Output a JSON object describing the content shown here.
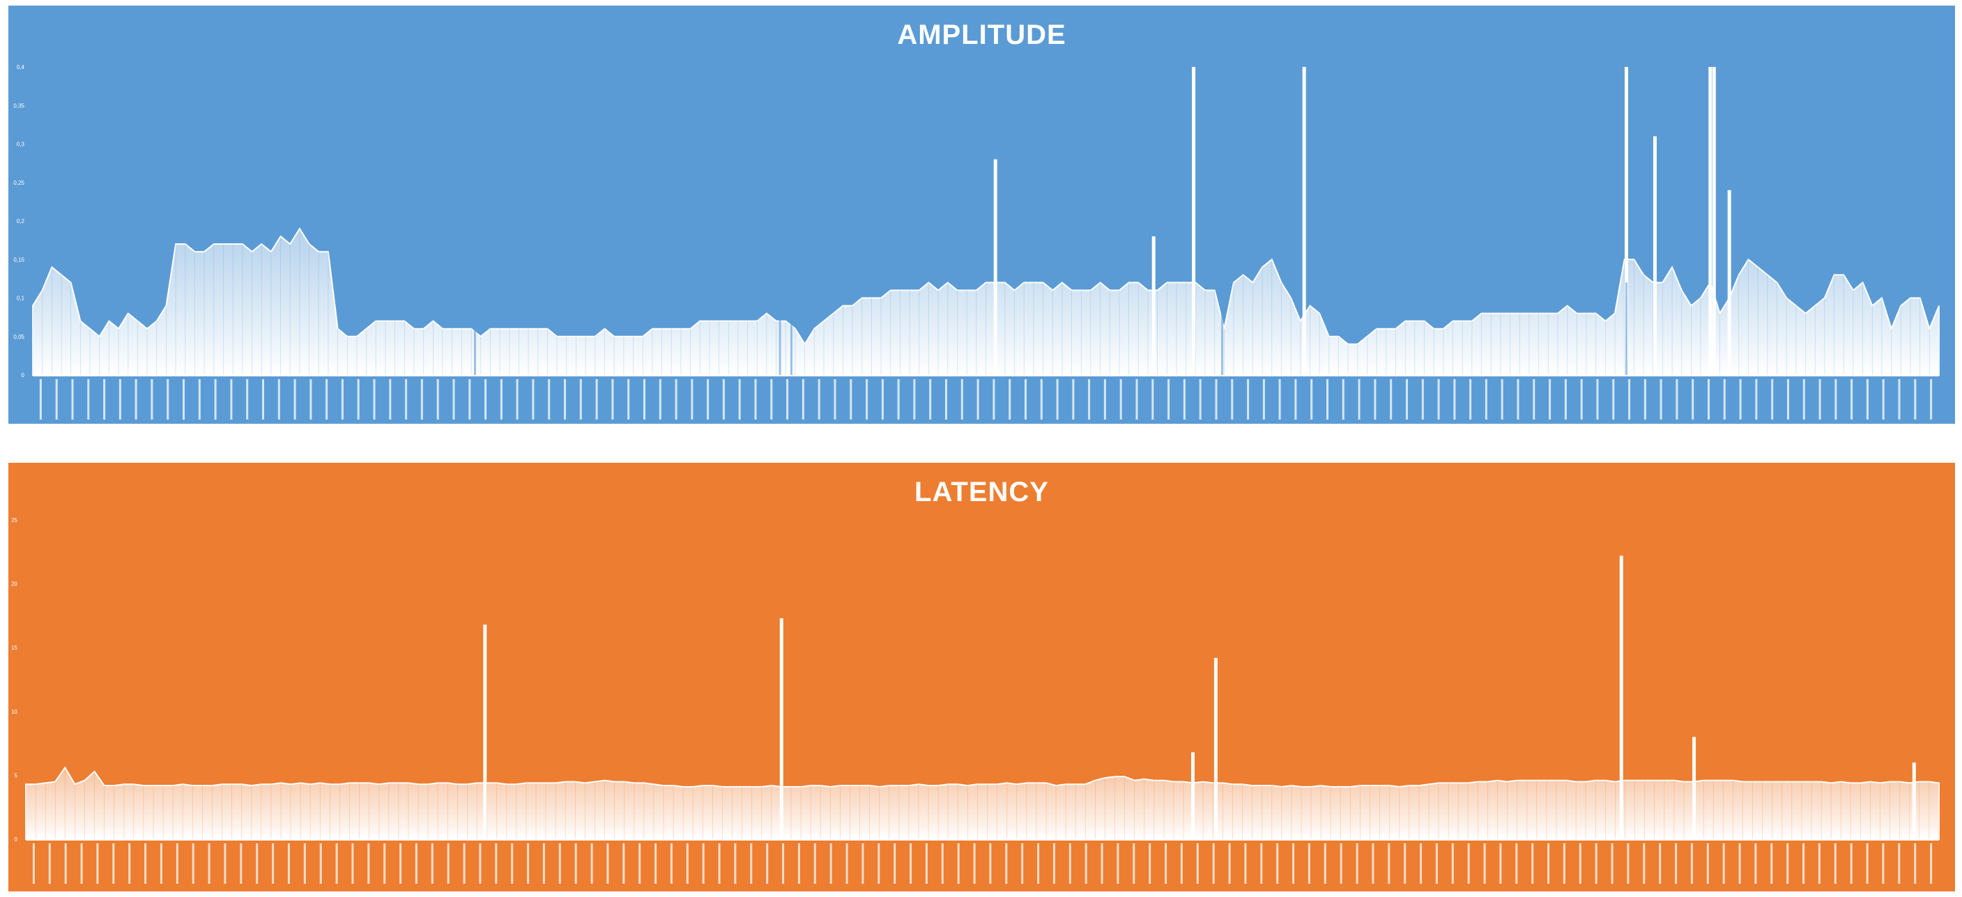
{
  "chart_data": [
    {
      "type": "area",
      "title": "AMPLITUDE",
      "xlabel": "",
      "ylabel": "",
      "ylim": [
        0,
        0.4
      ],
      "yticks": [
        0,
        0.05,
        0.1,
        0.15,
        0.2,
        0.25,
        0.3,
        0.35,
        0.4
      ],
      "ytick_labels": [
        "0",
        "0,05",
        "0,1",
        "0,15",
        "0,2",
        "0,25",
        "0,3",
        "0,35",
        "0,4"
      ],
      "x_tick_count": 120,
      "grid": false,
      "legend": "none",
      "colors": {
        "background": "#5B9BD5",
        "fill": "#FFFFFF"
      },
      "series": [
        {
          "values": [
            0.09,
            0.11,
            0.14,
            0.13,
            0.12,
            0.07,
            0.06,
            0.05,
            0.07,
            0.06,
            0.08,
            0.07,
            0.06,
            0.07,
            0.09,
            0.17,
            0.17,
            0.16,
            0.16,
            0.17,
            0.17,
            0.17,
            0.17,
            0.16,
            0.17,
            0.16,
            0.18,
            0.17,
            0.19,
            0.17,
            0.16,
            0.16,
            0.06,
            0.05,
            0.05,
            0.06,
            0.07,
            0.07,
            0.07,
            0.07,
            0.06,
            0.06,
            0.07,
            0.06,
            0.06,
            0.06,
            0.06,
            0.05,
            0.06,
            0.06,
            0.06,
            0.06,
            0.06,
            0.06,
            0.06,
            0.05,
            0.05,
            0.05,
            0.05,
            0.05,
            0.06,
            0.05,
            0.05,
            0.05,
            0.05,
            0.06,
            0.06,
            0.06,
            0.06,
            0.06,
            0.07,
            0.07,
            0.07,
            0.07,
            0.07,
            0.07,
            0.07,
            0.08,
            0.07,
            0.07,
            0.06,
            0.04,
            0.06,
            0.07,
            0.08,
            0.09,
            0.09,
            0.1,
            0.1,
            0.1,
            0.11,
            0.11,
            0.11,
            0.11,
            0.12,
            0.11,
            0.12,
            0.11,
            0.11,
            0.11,
            0.12,
            0.12,
            0.12,
            0.11,
            0.12,
            0.12,
            0.12,
            0.11,
            0.12,
            0.11,
            0.11,
            0.11,
            0.12,
            0.11,
            0.11,
            0.12,
            0.12,
            0.11,
            0.11,
            0.12,
            0.12,
            0.12,
            0.12,
            0.11,
            0.11,
            0.06,
            0.12,
            0.13,
            0.12,
            0.14,
            0.15,
            0.12,
            0.1,
            0.07,
            0.09,
            0.08,
            0.05,
            0.05,
            0.04,
            0.04,
            0.05,
            0.06,
            0.06,
            0.06,
            0.07,
            0.07,
            0.07,
            0.06,
            0.06,
            0.07,
            0.07,
            0.07,
            0.08,
            0.08,
            0.08,
            0.08,
            0.08,
            0.08,
            0.08,
            0.08,
            0.08,
            0.09,
            0.08,
            0.08,
            0.08,
            0.07,
            0.08,
            0.15,
            0.15,
            0.13,
            0.12,
            0.12,
            0.14,
            0.11,
            0.09,
            0.1,
            0.12,
            0.08,
            0.1,
            0.13,
            0.15,
            0.14,
            0.13,
            0.12,
            0.1,
            0.09,
            0.08,
            0.09,
            0.1,
            0.13,
            0.13,
            0.11,
            0.12,
            0.09,
            0.1,
            0.06,
            0.09,
            0.1,
            0.1,
            0.06,
            0.09
          ]
        }
      ],
      "spikes": [
        {
          "position": 0.505,
          "value": 0.28
        },
        {
          "position": 0.588,
          "value": 0.18
        },
        {
          "position": 0.609,
          "value": 0.4
        },
        {
          "position": 0.667,
          "value": 0.4
        },
        {
          "position": 0.836,
          "value": 0.4
        },
        {
          "position": 0.851,
          "value": 0.31
        },
        {
          "position": 0.88,
          "value": 0.4
        },
        {
          "position": 0.882,
          "value": 0.4
        },
        {
          "position": 0.89,
          "value": 0.24
        }
      ],
      "dips": [
        0.232,
        0.392,
        0.398,
        0.624,
        0.836
      ]
    },
    {
      "type": "area",
      "title": "LATENCY",
      "xlabel": "",
      "ylabel": "",
      "ylim": [
        0,
        25
      ],
      "yticks": [
        0,
        5,
        10,
        15,
        20,
        25
      ],
      "ytick_labels": [
        "0",
        "5",
        "10",
        "15",
        "20",
        "25"
      ],
      "x_tick_count": 120,
      "grid": false,
      "legend": "none",
      "colors": {
        "background": "#ED7D31",
        "fill": "#FFFFFF"
      },
      "series": [
        {
          "values": [
            4.3,
            4.3,
            4.4,
            4.5,
            5.6,
            4.3,
            4.6,
            5.3,
            4.2,
            4.2,
            4.3,
            4.3,
            4.2,
            4.2,
            4.2,
            4.2,
            4.3,
            4.2,
            4.2,
            4.2,
            4.3,
            4.3,
            4.3,
            4.2,
            4.3,
            4.3,
            4.4,
            4.3,
            4.4,
            4.3,
            4.4,
            4.3,
            4.3,
            4.4,
            4.4,
            4.4,
            4.3,
            4.4,
            4.4,
            4.4,
            4.3,
            4.3,
            4.4,
            4.4,
            4.3,
            4.3,
            4.4,
            4.4,
            4.4,
            4.3,
            4.3,
            4.4,
            4.4,
            4.4,
            4.4,
            4.5,
            4.5,
            4.4,
            4.5,
            4.6,
            4.5,
            4.5,
            4.4,
            4.4,
            4.3,
            4.2,
            4.2,
            4.1,
            4.1,
            4.2,
            4.2,
            4.1,
            4.1,
            4.1,
            4.1,
            4.1,
            4.2,
            4.1,
            4.1,
            4.1,
            4.2,
            4.2,
            4.1,
            4.2,
            4.2,
            4.2,
            4.2,
            4.1,
            4.2,
            4.2,
            4.2,
            4.3,
            4.2,
            4.2,
            4.3,
            4.3,
            4.2,
            4.3,
            4.3,
            4.3,
            4.4,
            4.3,
            4.4,
            4.4,
            4.4,
            4.2,
            4.3,
            4.3,
            4.3,
            4.6,
            4.8,
            4.9,
            4.9,
            4.6,
            4.7,
            4.6,
            4.6,
            4.5,
            4.5,
            4.4,
            4.5,
            4.4,
            4.4,
            4.3,
            4.3,
            4.2,
            4.2,
            4.2,
            4.1,
            4.2,
            4.1,
            4.1,
            4.2,
            4.1,
            4.1,
            4.1,
            4.2,
            4.2,
            4.2,
            4.2,
            4.1,
            4.2,
            4.2,
            4.3,
            4.4,
            4.4,
            4.4,
            4.4,
            4.5,
            4.5,
            4.6,
            4.5,
            4.6,
            4.6,
            4.6,
            4.6,
            4.6,
            4.6,
            4.5,
            4.5,
            4.6,
            4.6,
            4.5,
            4.6,
            4.6,
            4.6,
            4.6,
            4.6,
            4.6,
            4.5,
            4.5,
            4.6,
            4.6,
            4.6,
            4.6,
            4.5,
            4.5,
            4.5,
            4.5,
            4.5,
            4.5,
            4.5,
            4.5,
            4.5,
            4.4,
            4.5,
            4.4,
            4.4,
            4.5,
            4.4,
            4.5,
            4.5,
            4.4,
            4.5,
            4.5,
            4.4
          ]
        }
      ],
      "spikes": [
        {
          "position": 0.24,
          "value": 16.8
        },
        {
          "position": 0.395,
          "value": 17.3
        },
        {
          "position": 0.61,
          "value": 6.8
        },
        {
          "position": 0.622,
          "value": 14.2
        },
        {
          "position": 0.834,
          "value": 22.2
        },
        {
          "position": 0.872,
          "value": 8.0
        },
        {
          "position": 0.987,
          "value": 6.0
        }
      ],
      "dips": []
    }
  ]
}
